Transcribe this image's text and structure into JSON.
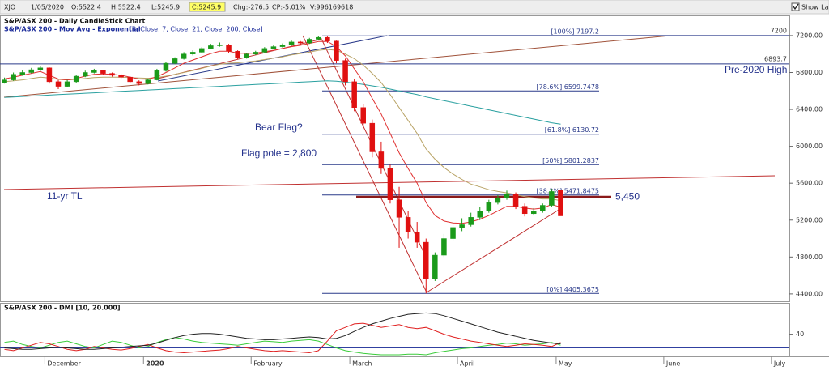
{
  "toolbar": {
    "symbol": "XJO",
    "date": "1/05/2020",
    "open": "O:5522.4",
    "high": "H:5522.4",
    "low": "L:5245.9",
    "close": "C:5245.9",
    "change": "Chg:-276.5",
    "change_percent": "CP:-5.01%",
    "volume": "V:996169618",
    "show_last": "Show Last"
  },
  "chart_data": [
    {
      "type": "candlestick",
      "title": "S&P/ASX 200 - Daily CandleStick Chart",
      "subtitle": "S&P/ASX 200 - Mov Avg - Exponential",
      "subtitle_params": "[3, Close, 7, Close, 21, Close, 200, Close]",
      "categories": [
        null,
        null,
        null,
        null,
        null,
        "December",
        null,
        null,
        null,
        null,
        null,
        null,
        null,
        null,
        null,
        null,
        "2020",
        null,
        null,
        null,
        null,
        null,
        null,
        null,
        null,
        null,
        null,
        null,
        "February",
        null,
        null,
        null,
        null,
        null,
        null,
        null,
        null,
        null,
        null,
        "March",
        null,
        null,
        null,
        null,
        null,
        null,
        null,
        null,
        null,
        null,
        null,
        "April",
        null,
        null,
        null,
        null,
        null,
        null,
        null,
        null,
        null,
        null,
        "May",
        null,
        null,
        null,
        null,
        null,
        null,
        null,
        null,
        null,
        null,
        null,
        "June",
        null,
        null,
        null,
        null,
        null,
        null,
        null,
        null,
        null,
        null,
        null,
        "July",
        null
      ],
      "open": [
        6690,
        6720,
        6780,
        6800,
        6830,
        6850,
        6700,
        6650,
        6700,
        6760,
        6800,
        6820,
        6790,
        6770,
        6750,
        6700,
        6680,
        6720,
        6820,
        6900,
        6950,
        7000,
        7020,
        7060,
        7090,
        7100,
        7030,
        6960,
        7000,
        7020,
        7060,
        7080,
        7100,
        7130,
        7120,
        7160,
        7180,
        7140,
        6930,
        6700,
        6420,
        6250,
        5940,
        5760,
        5420,
        5230,
        5070,
        4960,
        4560,
        4820,
        5000,
        5120,
        5150,
        5230,
        5300,
        5390,
        5440,
        5480,
        5350,
        5270,
        5300,
        5360,
        5522.4,
        null,
        null,
        null,
        null,
        null,
        null,
        null,
        null,
        null,
        null,
        null,
        null,
        null,
        null,
        null,
        null,
        null,
        null,
        null,
        null,
        null,
        null,
        null,
        null,
        null
      ],
      "high": [
        6745,
        6800,
        6825,
        6850,
        6870,
        6855,
        6720,
        6720,
        6775,
        6820,
        6840,
        6830,
        6800,
        6785,
        6760,
        6715,
        6735,
        6840,
        6915,
        6965,
        7020,
        7040,
        7075,
        7110,
        7125,
        7110,
        7040,
        7015,
        7035,
        7075,
        7095,
        7115,
        7145,
        7140,
        7175,
        7197.2,
        7190,
        7145,
        6950,
        6730,
        6460,
        6290,
        6050,
        5800,
        5560,
        5300,
        5180,
        5000,
        4850,
        5050,
        5180,
        5220,
        5280,
        5340,
        5420,
        5470,
        5520,
        5500,
        5380,
        5330,
        5380,
        5540,
        5522.4,
        null,
        null,
        null,
        null,
        null,
        null,
        null,
        null,
        null,
        null,
        null,
        null,
        null,
        null,
        null,
        null,
        null,
        null,
        null,
        null,
        null,
        null,
        null,
        null,
        null
      ],
      "low": [
        6680,
        6710,
        6765,
        6790,
        6815,
        6680,
        6620,
        6640,
        6690,
        6750,
        6790,
        6775,
        6755,
        6735,
        6685,
        6660,
        6670,
        6715,
        6810,
        6890,
        6940,
        6985,
        7010,
        7050,
        7080,
        7010,
        6940,
        6950,
        6990,
        7010,
        7050,
        7070,
        7090,
        7100,
        7110,
        7150,
        7120,
        6900,
        6660,
        6380,
        6200,
        5880,
        5700,
        5380,
        4900,
        5000,
        4900,
        4405.4,
        4540,
        4800,
        4970,
        5080,
        5130,
        5200,
        5280,
        5370,
        5420,
        5320,
        5240,
        5250,
        5280,
        5340,
        5245.9,
        null,
        null,
        null,
        null,
        null,
        null,
        null,
        null,
        null,
        null,
        null,
        null,
        null,
        null,
        null,
        null,
        null,
        null,
        null,
        null,
        null,
        null,
        null,
        null,
        null
      ],
      "close": [
        6720,
        6780,
        6800,
        6830,
        6850,
        6700,
        6650,
        6700,
        6760,
        6800,
        6820,
        6790,
        6770,
        6750,
        6700,
        6680,
        6720,
        6820,
        6900,
        6950,
        7000,
        7020,
        7060,
        7090,
        7100,
        7030,
        6960,
        7000,
        7020,
        7060,
        7080,
        7100,
        7130,
        7120,
        7160,
        7180,
        7140,
        6930,
        6700,
        6420,
        6250,
        5940,
        5760,
        5420,
        5230,
        5070,
        4960,
        4560,
        4820,
        5000,
        5120,
        5150,
        5230,
        5300,
        5390,
        5440,
        5480,
        5350,
        5270,
        5300,
        5360,
        5510,
        5245.9,
        null,
        null,
        null,
        null,
        null,
        null,
        null,
        null,
        null,
        null,
        null,
        null,
        null,
        null,
        null,
        null,
        null,
        null,
        null,
        null,
        null,
        null,
        null,
        null,
        null
      ],
      "up_color": "#1a9a1a",
      "down_color": "#e01010",
      "series": [
        {
          "color": "#2aa0a0",
          "values": [
            6530,
            6535,
            6540,
            6545,
            6550,
            6555,
            6560,
            6565,
            6570,
            6575,
            6580,
            6585,
            6590,
            6595,
            6600,
            6605,
            6610,
            6615,
            6620,
            6625,
            6630,
            6635,
            6640,
            6645,
            6650,
            6655,
            6660,
            6665,
            6670,
            6675,
            6680,
            6685,
            6690,
            6695,
            6700,
            6705,
            6710,
            6705,
            6695,
            6685,
            6670,
            6655,
            6640,
            6620,
            6600,
            6580,
            6560,
            6535,
            6515,
            6495,
            6475,
            6455,
            6435,
            6415,
            6395,
            6375,
            6355,
            6335,
            6315,
            6295,
            6275,
            6255,
            6240,
            null,
            null,
            null,
            null,
            null,
            null,
            null,
            null,
            null,
            null,
            null,
            null,
            null,
            null,
            null,
            null,
            null,
            null,
            null,
            null,
            null,
            null,
            null,
            null,
            null
          ]
        },
        {
          "color": "#b9a467",
          "values": [
            6700,
            6710,
            6720,
            6735,
            6750,
            6740,
            6725,
            6720,
            6725,
            6735,
            6745,
            6750,
            6750,
            6750,
            6745,
            6740,
            6738,
            6745,
            6760,
            6780,
            6800,
            6820,
            6845,
            6870,
            6890,
            6900,
            6905,
            6915,
            6925,
            6940,
            6955,
            6970,
            6990,
            7005,
            7020,
            7040,
            7050,
            7040,
            7000,
            6950,
            6880,
            6790,
            6690,
            6560,
            6420,
            6280,
            6140,
            5970,
            5860,
            5770,
            5700,
            5640,
            5590,
            5560,
            5530,
            5510,
            5495,
            5475,
            5455,
            5440,
            5430,
            5430,
            5410,
            null,
            null,
            null,
            null,
            null,
            null,
            null,
            null,
            null,
            null,
            null,
            null,
            null,
            null,
            null,
            null,
            null,
            null,
            null,
            null,
            null,
            null,
            null,
            null,
            null
          ]
        },
        {
          "color": "#e03030",
          "values": [
            6730,
            6750,
            6770,
            6790,
            6810,
            6770,
            6730,
            6720,
            6735,
            6760,
            6780,
            6785,
            6780,
            6770,
            6750,
            6730,
            6728,
            6755,
            6800,
            6850,
            6900,
            6935,
            6970,
            7005,
            7030,
            7030,
            7010,
            7007,
            7010,
            7025,
            7040,
            7060,
            7080,
            7095,
            7115,
            7135,
            7137,
            7080,
            6980,
            6840,
            6700,
            6520,
            6350,
            6140,
            5930,
            5760,
            5600,
            5390,
            5250,
            5190,
            5170,
            5165,
            5180,
            5210,
            5250,
            5300,
            5350,
            5350,
            5330,
            5320,
            5330,
            5370,
            5340,
            null,
            null,
            null,
            null,
            null,
            null,
            null,
            null,
            null,
            null,
            null,
            null,
            null,
            null,
            null,
            null,
            null,
            null,
            null,
            null,
            null,
            null,
            null,
            null,
            null
          ]
        }
      ],
      "ylim": [
        4320,
        7410
      ],
      "yticks": [
        {
          "value": 4400,
          "label": "4400.00"
        },
        {
          "value": 4800,
          "label": "4800.00"
        },
        {
          "value": 5200,
          "label": "5200.00"
        },
        {
          "value": 5600,
          "label": "5600.00"
        },
        {
          "value": 6000,
          "label": "6000.00"
        },
        {
          "value": 6400,
          "label": "6400.00"
        },
        {
          "value": 6800,
          "label": "6800.00"
        },
        {
          "value": 7200,
          "label": "7200.00"
        }
      ],
      "fib_levels": [
        {
          "value": 7197.2,
          "label": "[100%] 7197.2"
        },
        {
          "value": 6599.7478,
          "label": "[78.6%] 6599.7478"
        },
        {
          "value": 6130.72,
          "label": "[61.8%] 6130.72"
        },
        {
          "value": 5801.2837,
          "label": "[50%] 5801.2837"
        },
        {
          "value": 5471.8475,
          "label": "[38.2%] 5471.8475"
        },
        {
          "value": 4405.3675,
          "label": "[0%] 4405.3675"
        }
      ],
      "fib_color": "#2a3a8a",
      "price_lines": [
        7200,
        6893.7
      ],
      "price_line_color": "#2a3a8a",
      "key_level": {
        "value": 5450,
        "label": "5,450",
        "color": "#8b1a1a"
      },
      "annotations": [
        "Bear Flag?",
        "Flag pole = 2,800",
        "11-yr TL",
        "Pre-2020 High"
      ]
    },
    {
      "type": "line",
      "title": "S&P/ASX 200 - DMI [10, 20.000]",
      "series": [
        {
          "color": "#3ccc3c",
          "values": [
            28,
            30,
            25,
            22,
            20,
            24,
            28,
            30,
            26,
            22,
            20,
            25,
            30,
            28,
            24,
            20,
            22,
            28,
            32,
            35,
            33,
            30,
            28,
            27,
            26,
            25,
            24,
            26,
            28,
            30,
            29,
            28,
            30,
            31,
            32,
            30,
            25,
            20,
            16,
            14,
            12,
            11,
            10,
            10,
            10,
            11,
            11,
            10,
            13,
            15,
            17,
            19,
            20,
            22,
            24,
            25,
            27,
            26,
            24,
            25,
            26,
            28,
            24,
            null,
            null,
            null,
            null,
            null,
            null,
            null,
            null,
            null,
            null,
            null,
            null,
            null,
            null,
            null,
            null,
            null,
            null,
            null,
            null,
            null,
            null,
            null,
            null,
            null
          ]
        },
        {
          "color": "#e02020",
          "values": [
            18,
            16,
            20,
            24,
            28,
            26,
            22,
            18,
            16,
            18,
            22,
            20,
            18,
            17,
            19,
            22,
            25,
            20,
            16,
            14,
            13,
            14,
            15,
            16,
            17,
            19,
            22,
            20,
            18,
            16,
            15,
            16,
            15,
            14,
            13,
            16,
            30,
            45,
            50,
            55,
            56,
            53,
            50,
            52,
            54,
            50,
            48,
            50,
            45,
            40,
            36,
            33,
            30,
            28,
            26,
            24,
            22,
            24,
            26,
            25,
            24,
            22,
            28,
            null,
            null,
            null,
            null,
            null,
            null,
            null,
            null,
            null,
            null,
            null,
            null,
            null,
            null,
            null,
            null,
            null,
            null,
            null,
            null,
            null,
            null,
            null,
            null,
            null
          ]
        },
        {
          "color": "#222222",
          "values": [
            20,
            19,
            18,
            18,
            19,
            20,
            21,
            20,
            19,
            18,
            18,
            19,
            20,
            21,
            22,
            23,
            24,
            27,
            31,
            35,
            38,
            40,
            41,
            41,
            40,
            38,
            36,
            34,
            33,
            32,
            32,
            33,
            34,
            35,
            36,
            35,
            33,
            34,
            38,
            44,
            50,
            55,
            59,
            63,
            66,
            69,
            70,
            71,
            70,
            67,
            63,
            59,
            55,
            51,
            47,
            43,
            40,
            37,
            34,
            31,
            29,
            27,
            26,
            null,
            null,
            null,
            null,
            null,
            null,
            null,
            null,
            null,
            null,
            null,
            null,
            null,
            null,
            null,
            null,
            null,
            null,
            null,
            null,
            null,
            null,
            null,
            null,
            null
          ]
        }
      ],
      "reference_line": 20,
      "reference_color": "#3040a0",
      "ylim": [
        10,
        75
      ],
      "yticks": [
        40
      ]
    }
  ]
}
